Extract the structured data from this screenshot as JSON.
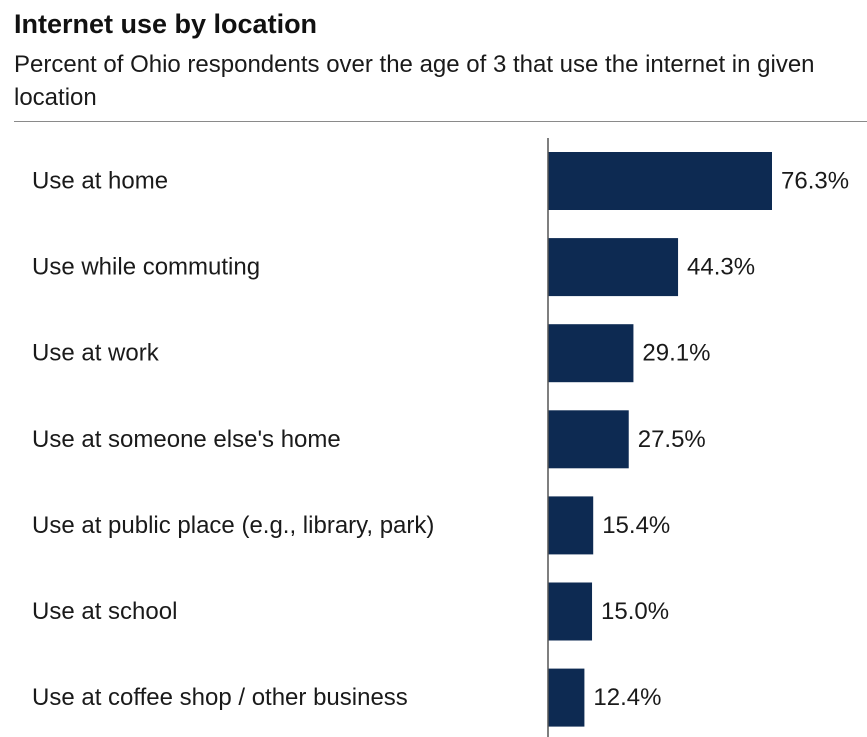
{
  "chart_data": {
    "type": "bar",
    "orientation": "horizontal",
    "title": "Internet use by location",
    "subtitle": "Percent of Ohio respondents over the age of 3 that use the internet in given location",
    "categories": [
      "Use at home",
      "Use while commuting",
      "Use at work",
      "Use at someone else's home",
      "Use at public place (e.g., library, park)",
      "Use at school",
      "Use at coffee shop / other business"
    ],
    "values": [
      76.3,
      44.3,
      29.1,
      27.5,
      15.4,
      15.0,
      12.4
    ],
    "value_labels": [
      "76.3%",
      "44.3%",
      "29.1%",
      "27.5%",
      "15.4%",
      "15.0%",
      "12.4%"
    ],
    "unit": "%",
    "xlim": [
      0,
      76.3
    ],
    "grid": false,
    "legend": "none",
    "bar_color": "#0d2a52"
  }
}
